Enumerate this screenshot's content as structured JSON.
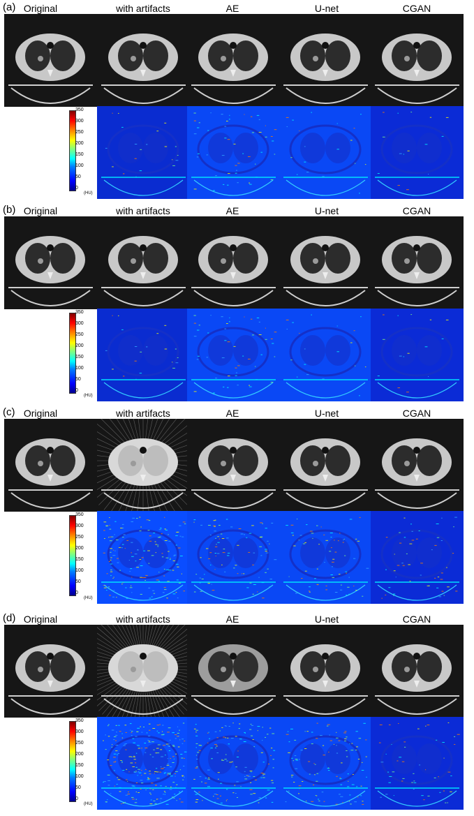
{
  "columns": [
    "Original",
    "with artifacts",
    "AE",
    "U-net",
    "CGAN"
  ],
  "panels": [
    {
      "label": "(a)",
      "artifact_level": "low"
    },
    {
      "label": "(b)",
      "artifact_level": "low"
    },
    {
      "label": "(c)",
      "artifact_level": "medium"
    },
    {
      "label": "(d)",
      "artifact_level": "high"
    }
  ],
  "colorbar": {
    "ticks": [
      "350",
      "300",
      "250",
      "200",
      "150",
      "100",
      "50",
      "0"
    ],
    "unit": "(HU)",
    "colors": [
      "#00008f",
      "#0000ff",
      "#0080ff",
      "#00ffff",
      "#ffff00",
      "#ff8000",
      "#ff0000",
      "#800000"
    ]
  }
}
